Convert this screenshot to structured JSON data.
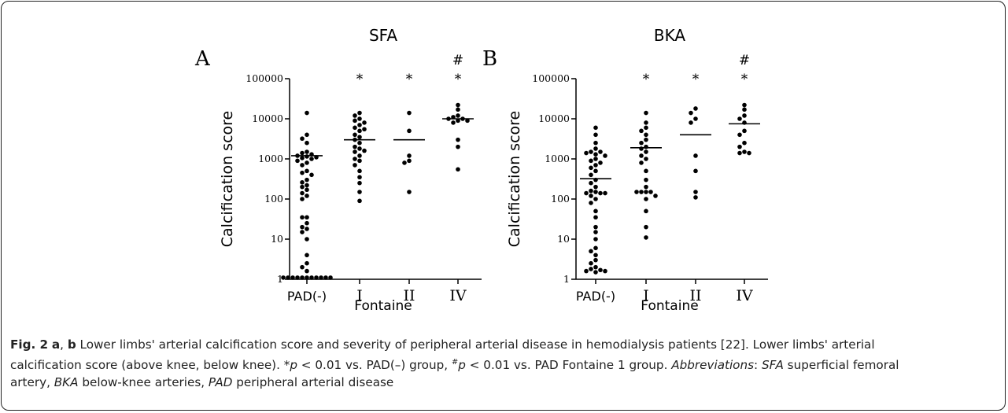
{
  "chart_data": [
    {
      "panel_letter": "A",
      "title": "SFA",
      "type": "scatter",
      "scale": "log",
      "ylabel": "Calcification score",
      "xlabel": "Fontaine",
      "yticks": [
        "1",
        "10",
        "100",
        "1000",
        "10000",
        "100000"
      ],
      "categories": [
        "PAD(-)",
        "I",
        "II",
        "IV"
      ],
      "ylim": [
        1,
        100000
      ],
      "groups": [
        {
          "category": "PAD(-)",
          "mean": 1200,
          "marks": [],
          "points": [
            14000,
            4000,
            3200,
            2500,
            1500,
            1400,
            1300,
            1200,
            1150,
            1100,
            1050,
            1000,
            900,
            800,
            700,
            500,
            450,
            400,
            300,
            260,
            220,
            200,
            170,
            140,
            120,
            100,
            35,
            35,
            25,
            20,
            18,
            15,
            10,
            4,
            2.5,
            2,
            1.6,
            1.1,
            1.1,
            1.1,
            1.1,
            1.1,
            1.1,
            1.1,
            1.1,
            1.1,
            1.1,
            1.1
          ]
        },
        {
          "category": "I",
          "mean": 3000,
          "marks": [
            "*"
          ],
          "points": [
            14000,
            12000,
            10000,
            9000,
            8000,
            7000,
            6000,
            5500,
            5000,
            4000,
            3500,
            3000,
            2500,
            2000,
            1800,
            1600,
            1500,
            1200,
            1000,
            900,
            700,
            500,
            350,
            250,
            150,
            90
          ]
        },
        {
          "category": "II",
          "mean": 3000,
          "marks": [
            "*"
          ],
          "points": [
            14000,
            5000,
            1200,
            900,
            800,
            150
          ]
        },
        {
          "category": "IV",
          "mean": 10000,
          "marks": [
            "*",
            "#"
          ],
          "points": [
            22000,
            17000,
            12000,
            11000,
            10000,
            10000,
            9000,
            9000,
            8000,
            3000,
            2000,
            550
          ]
        }
      ]
    },
    {
      "panel_letter": "B",
      "title": "BKA",
      "type": "scatter",
      "scale": "log",
      "ylabel": "Calcification score",
      "xlabel": "Fontaine",
      "yticks": [
        "1",
        "10",
        "100",
        "1000",
        "10000",
        "100000"
      ],
      "categories": [
        "PAD(-)",
        "I",
        "II",
        "IV"
      ],
      "ylim": [
        1,
        100000
      ],
      "groups": [
        {
          "category": "PAD(-)",
          "mean": 320,
          "marks": [],
          "points": [
            6000,
            4000,
            2500,
            1800,
            1500,
            1500,
            1400,
            1300,
            1200,
            1000,
            900,
            800,
            700,
            600,
            500,
            400,
            300,
            250,
            200,
            160,
            150,
            140,
            140,
            140,
            120,
            100,
            80,
            50,
            35,
            20,
            15,
            10,
            6,
            5,
            4,
            3,
            2.5,
            2,
            1.8,
            1.7,
            1.6,
            1.6,
            1.5
          ]
        },
        {
          "category": "I",
          "mean": 1900,
          "marks": [
            "*"
          ],
          "points": [
            14000,
            8000,
            6000,
            5000,
            4000,
            3000,
            2500,
            2000,
            1800,
            1500,
            1200,
            1000,
            800,
            500,
            300,
            200,
            150,
            150,
            150,
            150,
            120,
            100,
            50,
            20,
            11
          ]
        },
        {
          "category": "II",
          "mean": 4000,
          "marks": [
            "*"
          ],
          "points": [
            18000,
            14000,
            10000,
            8000,
            1200,
            500,
            150,
            110
          ]
        },
        {
          "category": "IV",
          "mean": 7500,
          "marks": [
            "*",
            "#"
          ],
          "points": [
            22000,
            17000,
            12000,
            10000,
            8000,
            5000,
            4000,
            2500,
            2000,
            1500,
            1400,
            1400
          ]
        }
      ]
    }
  ],
  "caption": {
    "fig_label": "Fig. 2",
    "panel_a": "a",
    "separator": ", ",
    "panel_b": "b",
    "line1_rest": " Lower limbs' arterial calcification score and severity of peripheral arterial disease in hemodialysis patients [22]. Lower limbs' arterial",
    "line2_start": "calcification score (above knee, below knee). *",
    "p1": "p",
    "vs1": " < 0.01 vs. PAD(–) group, ",
    "hash": "#",
    "p2": "p",
    "vs2": " < 0.01 vs. PAD Fontaine 1 group. ",
    "abbr_label": "Abbreviations",
    "abbr_colon": ": ",
    "sfa_abbr": "SFA",
    "sfa_def": " superficial femoral",
    "line3_start": "artery, ",
    "bka_abbr": "BKA",
    "bka_def": " below-knee arteries, ",
    "pad_abbr": "PAD",
    "pad_def": " peripheral arterial disease"
  }
}
